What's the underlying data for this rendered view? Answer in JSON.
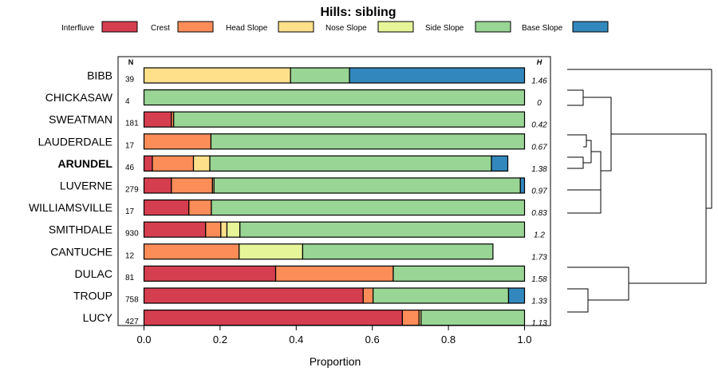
{
  "chart_data": {
    "type": "bar",
    "orientation": "horizontal",
    "stacked": true,
    "title": "Hills: sibling",
    "xlabel": "Proportion",
    "ylabel": "",
    "xlim": [
      0,
      1
    ],
    "xticks": [
      "0.0",
      "0.2",
      "0.4",
      "0.6",
      "0.8",
      "1.0"
    ],
    "n_header": "N",
    "h_header": "H",
    "legend_position": "top",
    "series": [
      {
        "name": "Interfluve",
        "color": "#D53E4F"
      },
      {
        "name": "Crest",
        "color": "#FC8D59"
      },
      {
        "name": "Head Slope",
        "color": "#FEE08B"
      },
      {
        "name": "Nose Slope",
        "color": "#E6F598"
      },
      {
        "name": "Side Slope",
        "color": "#99D594"
      },
      {
        "name": "Base Slope",
        "color": "#3288BD"
      }
    ],
    "categories": [
      {
        "name": "BIBB",
        "n": "39",
        "h": "1.46",
        "bold": false,
        "values": [
          0,
          0,
          0.385,
          0,
          0.155,
          0.46
        ]
      },
      {
        "name": "CHICKASAW",
        "n": "4",
        "h": "0",
        "bold": false,
        "values": [
          0,
          0,
          0,
          0,
          1.0,
          0
        ]
      },
      {
        "name": "SWEATMAN",
        "n": "181",
        "h": "0.42",
        "bold": false,
        "values": [
          0.072,
          0.006,
          0,
          0,
          0.922,
          0
        ]
      },
      {
        "name": "LAUDERDALE",
        "n": "17",
        "h": "0.67",
        "bold": false,
        "values": [
          0,
          0.176,
          0,
          0,
          0.824,
          0
        ]
      },
      {
        "name": "ARUNDEL",
        "n": "46",
        "h": "1.38",
        "bold": true,
        "values": [
          0.022,
          0.108,
          0.043,
          0,
          0.74,
          0.043
        ]
      },
      {
        "name": "LUVERNE",
        "n": "279",
        "h": "0.97",
        "bold": false,
        "values": [
          0.072,
          0.108,
          0.004,
          0,
          0.805,
          0.011
        ]
      },
      {
        "name": "WILLIAMSVILLE",
        "n": "17",
        "h": "0.83",
        "bold": false,
        "values": [
          0.118,
          0.059,
          0,
          0,
          0.823,
          0
        ]
      },
      {
        "name": "SMITHDALE",
        "n": "930",
        "h": "1.2",
        "bold": false,
        "values": [
          0.162,
          0.04,
          0.016,
          0.034,
          0.748,
          0
        ]
      },
      {
        "name": "CANTUCHE",
        "n": "12",
        "h": "1.73",
        "bold": false,
        "values": [
          0,
          0.25,
          0,
          0.167,
          0.5,
          0
        ]
      },
      {
        "name": "DULAC",
        "n": "81",
        "h": "1.58",
        "bold": false,
        "values": [
          0.346,
          0.309,
          0,
          0,
          0.345,
          0
        ]
      },
      {
        "name": "TROUP",
        "n": "758",
        "h": "1.33",
        "bold": false,
        "values": [
          0.576,
          0.026,
          0,
          0,
          0.356,
          0.042
        ]
      },
      {
        "name": "LUCY",
        "n": "427",
        "h": "1.13",
        "bold": false,
        "values": [
          0.679,
          0.044,
          0.005,
          0,
          0.272,
          0
        ]
      }
    ]
  }
}
